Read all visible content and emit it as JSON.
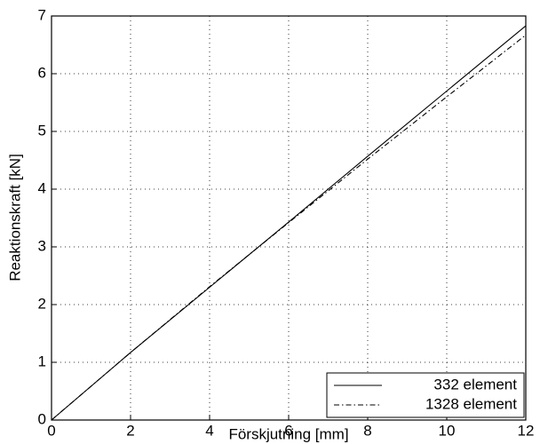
{
  "chart_data": {
    "type": "line",
    "xlabel": "Förskjutning [mm]",
    "ylabel": "Reaktionskraft  [kN]",
    "x": [
      0,
      2,
      4,
      6,
      8,
      10,
      12
    ],
    "series": [
      {
        "name": "332 element",
        "color": "#000000",
        "linestyle": "solid",
        "values": [
          0,
          1.17,
          2.3,
          3.43,
          4.57,
          5.7,
          6.83
        ]
      },
      {
        "name": "1328 element",
        "color": "#000000",
        "linestyle": "dashdot",
        "values": [
          0,
          1.17,
          2.31,
          3.42,
          4.52,
          5.6,
          6.67
        ]
      }
    ],
    "xlim": [
      0,
      12
    ],
    "xticks": [
      0,
      2,
      4,
      6,
      8,
      10,
      12
    ],
    "ylim": [
      0,
      7
    ],
    "yticks": [
      0,
      1,
      2,
      3,
      4,
      5,
      6,
      7
    ],
    "grid": true,
    "legend": "lower right"
  }
}
